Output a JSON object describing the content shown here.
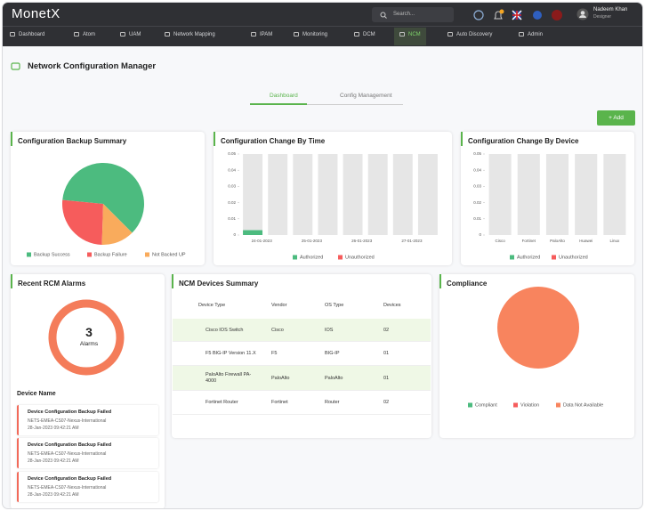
{
  "header": {
    "logo": "MonetX",
    "search_placeholder": "Search...",
    "user_name": "Nadeem Khan",
    "user_role": "Designer"
  },
  "nav": [
    "Dashboard",
    "Atom",
    "UAM",
    "Network Mapping",
    "IPAM",
    "Monitoring",
    "DCM",
    "NCM",
    "Auto Discovery",
    "Admin"
  ],
  "active_nav": 7,
  "page_title": "Network Configuration Manager",
  "tabs": [
    "Dashboard",
    "Config Management"
  ],
  "active_tab": 0,
  "add_button": "+ Add",
  "backup_chart": {
    "type": "pie",
    "title": "Configuration Backup Summary",
    "categories": [
      "Backup Success",
      "Backup Failure",
      "Not Backed UP"
    ],
    "values": [
      61,
      26,
      13
    ],
    "colors": [
      "#4cbb7f",
      "#f65c5c",
      "#f9ab5c"
    ]
  },
  "change_time_chart": {
    "type": "bar",
    "title": "Configuration Change By Time",
    "categories": [
      "24-01-2023",
      null,
      "25-01-2023",
      null,
      "26-01-2023",
      null,
      "27-01-2023",
      null
    ],
    "series": [
      {
        "name": "Authorized",
        "color": "#4cbb7f",
        "values": [
          0.003,
          0,
          0,
          0,
          0,
          0,
          0,
          0
        ]
      },
      {
        "name": "Unauthorized",
        "color": "#f65c5c",
        "values": [
          0,
          0,
          0,
          0,
          0,
          0,
          0,
          0
        ]
      }
    ],
    "ylim": [
      0,
      0.05
    ],
    "yticks": [
      0,
      0.01,
      0.02,
      0.03,
      0.04,
      0.05
    ]
  },
  "change_device_chart": {
    "type": "bar",
    "title": "Configuration Change By Device",
    "categories": [
      "Cisco",
      "Fortinet",
      "PaloAlto",
      "Huawei",
      "Linux"
    ],
    "series": [
      {
        "name": "Authorized",
        "color": "#4cbb7f",
        "values": [
          0,
          0,
          0,
          0,
          0
        ]
      },
      {
        "name": "Unauthorized",
        "color": "#f65c5c",
        "values": [
          0,
          0,
          0,
          0,
          0
        ]
      }
    ],
    "ylim": [
      0,
      0.05
    ],
    "yticks": [
      0,
      0.01,
      0.02,
      0.03,
      0.04,
      0.05
    ]
  },
  "rcm_alarms": {
    "title": "Recent RCM Alarms",
    "count": "3",
    "count_label": "Alarms",
    "list_title": "Device Name",
    "items": [
      {
        "title": "Device Configuration Backup Failed",
        "device": "NETS-EMEA-CS07-Nexus-International",
        "time": "28-Jan-2023  09:42:21 AM"
      },
      {
        "title": "Device Configuration Backup Failed",
        "device": "NETS-EMEA-CS07-Nexus-International",
        "time": "28-Jan-2023  09:42:21 AM"
      },
      {
        "title": "Device Configuration Backup Failed",
        "device": "NETS-EMEA-CS07-Nexus-International",
        "time": "28-Jan-2023  09:42:21 AM"
      }
    ]
  },
  "devices_summary": {
    "title": "NCM Devices Summary",
    "columns": [
      "Device Type",
      "Vendor",
      "OS Type",
      "Devices"
    ],
    "rows": [
      [
        "Cisco IOS Switch",
        "Cisco",
        "IOS",
        "02"
      ],
      [
        "F5 BIG-IP Version 11.X",
        "F5",
        "BIG-IP",
        "01"
      ],
      [
        "PaloAlto Firewall PA-4000",
        "PaloAlto",
        "PaloAlto",
        "01"
      ],
      [
        "Fortinet Router",
        "Fortinet",
        "Router",
        "02"
      ]
    ]
  },
  "compliance_chart": {
    "type": "pie",
    "title": "Compliance",
    "categories": [
      "Compliant",
      "Violation",
      "Data Not Available"
    ],
    "values": [
      0,
      0,
      100
    ],
    "colors": [
      "#4cbb7f",
      "#f65c5c",
      "#f8845e"
    ]
  }
}
